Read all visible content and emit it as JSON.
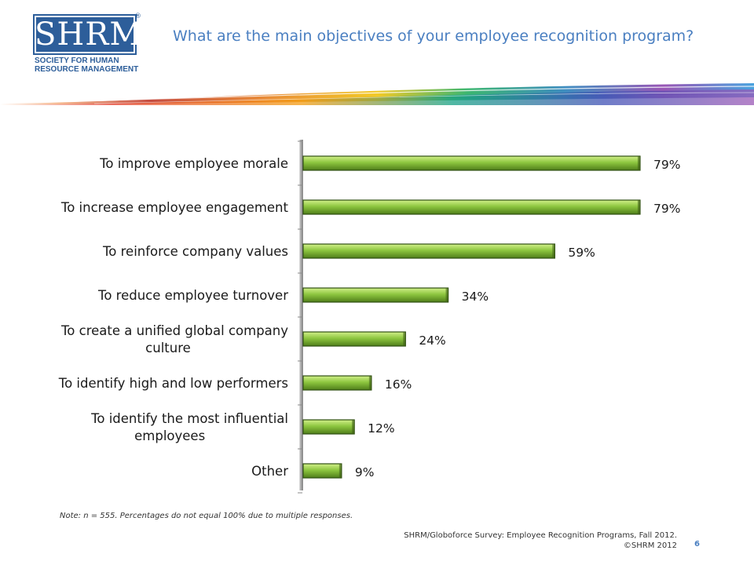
{
  "logo": {
    "mark": "SHRM",
    "registered": "®",
    "line1": "SOCIETY FOR HUMAN",
    "line2": "RESOURCE MANAGEMENT"
  },
  "slide": {
    "title": "What are the main objectives of your employee recognition program?",
    "note": "Note: n = 555. Percentages do not equal 100% due to multiple responses.",
    "source_line1": "SHRM/Globoforce Survey: Employee Recognition Programs, Fall 2012.",
    "source_line2": "©SHRM 2012",
    "page_number": "6"
  },
  "colors": {
    "title": "#4a7fc1",
    "bar_fill": "#8dc63f",
    "bar_edge": "#2f4f12",
    "logo_blue": "#2d5e9a"
  },
  "chart_data": {
    "type": "bar",
    "orientation": "horizontal",
    "categories": [
      "To improve employee morale",
      "To increase employee engagement",
      "To reinforce company values",
      "To reduce employee turnover",
      "To create a unified global company culture",
      "To identify high and low performers",
      "To identify the most influential employees",
      "Other"
    ],
    "category_lines": [
      [
        "To improve employee morale"
      ],
      [
        "To increase employee engagement"
      ],
      [
        "To reinforce company values"
      ],
      [
        "To reduce employee turnover"
      ],
      [
        "To create a unified global company",
        "culture"
      ],
      [
        "To identify high and low performers"
      ],
      [
        "To identify the most influential",
        "employees"
      ],
      [
        "Other"
      ]
    ],
    "values": [
      79,
      79,
      59,
      34,
      24,
      16,
      12,
      9
    ],
    "value_labels": [
      "79%",
      "79%",
      "59%",
      "34%",
      "24%",
      "16%",
      "12%",
      "9%"
    ],
    "xlim": [
      0,
      100
    ],
    "grid": false,
    "legend": "none"
  }
}
